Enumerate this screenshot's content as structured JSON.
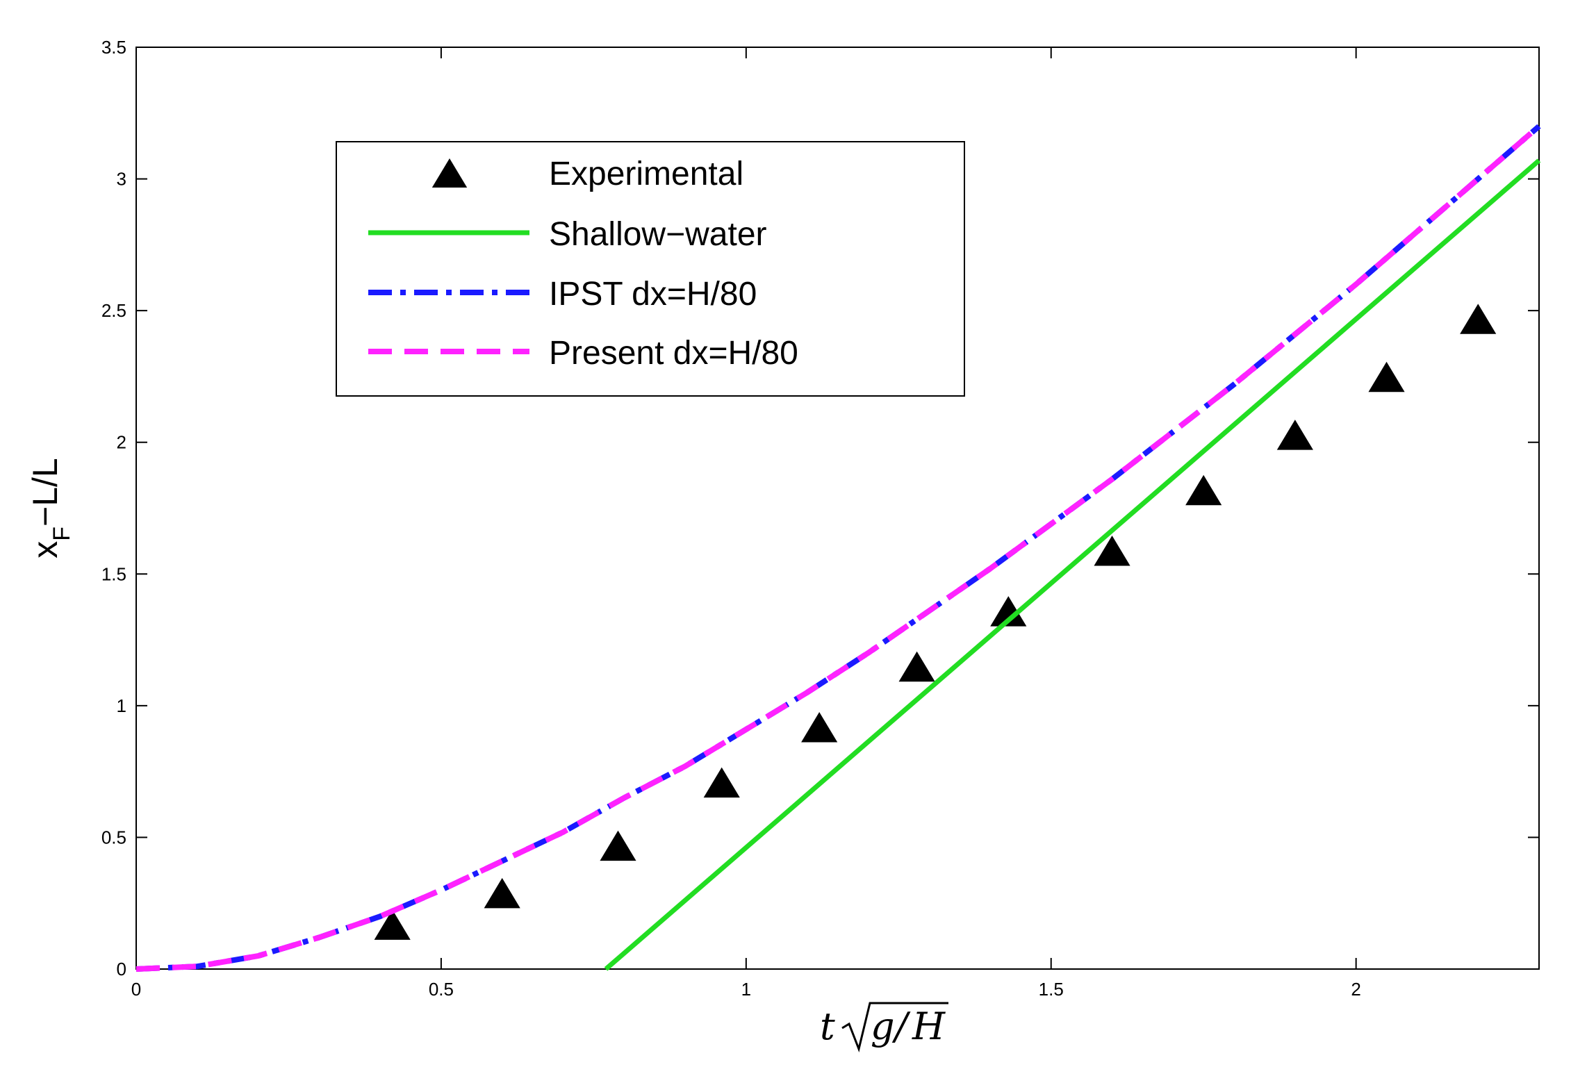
{
  "chart_data": {
    "type": "line",
    "title": "",
    "xlabel": "t√(g/H)",
    "xlabel_parts": {
      "t": "t",
      "g": "g",
      "slash": "/",
      "H": "H"
    },
    "ylabel": "x_F−L/L",
    "ylabel_parts": {
      "x": "x",
      "sub": "F",
      "rest": "−L/L"
    },
    "xlim": [
      0,
      2.3
    ],
    "ylim": [
      0,
      3.5
    ],
    "grid": false,
    "legend_position": "upper-left",
    "xticks": [
      0,
      0.5,
      1,
      1.5,
      2
    ],
    "xtick_labels": [
      "0",
      "0.5",
      "1",
      "1.5",
      "2"
    ],
    "yticks": [
      0,
      0.5,
      1,
      1.5,
      2,
      2.5,
      3,
      3.5
    ],
    "ytick_labels": [
      "0",
      "0.5",
      "1",
      "1.5",
      "2",
      "2.5",
      "3",
      "3.5"
    ],
    "series": [
      {
        "name": "Experimental",
        "style": "markers-triangle",
        "color": "#000000",
        "x": [
          0.42,
          0.6,
          0.79,
          0.96,
          1.12,
          1.28,
          1.43,
          1.6,
          1.75,
          1.9,
          2.05,
          2.2
        ],
        "y": [
          0.16,
          0.28,
          0.46,
          0.7,
          0.91,
          1.14,
          1.35,
          1.58,
          1.81,
          2.02,
          2.24,
          2.46
        ]
      },
      {
        "name": "Shallow−water",
        "style": "solid",
        "color": "#22dd22",
        "x": [
          0.77,
          2.3
        ],
        "y": [
          0.0,
          3.07
        ]
      },
      {
        "name": "IPST dx=H/80",
        "style": "dash-dot",
        "color": "#1a1aff",
        "x": [
          0,
          0.1,
          0.2,
          0.3,
          0.4,
          0.5,
          0.6,
          0.7,
          0.8,
          0.9,
          1.0,
          1.1,
          1.2,
          1.3,
          1.4,
          1.5,
          1.6,
          1.7,
          1.8,
          1.9,
          2.0,
          2.1,
          2.2,
          2.3
        ],
        "y": [
          0,
          0.01,
          0.05,
          0.12,
          0.2,
          0.3,
          0.41,
          0.52,
          0.65,
          0.77,
          0.91,
          1.05,
          1.2,
          1.36,
          1.52,
          1.69,
          1.86,
          2.04,
          2.22,
          2.41,
          2.6,
          2.8,
          3.0,
          3.2
        ]
      },
      {
        "name": "Present dx=H/80",
        "style": "dashed",
        "color": "#ff22ff",
        "x": [
          0,
          0.1,
          0.2,
          0.3,
          0.4,
          0.5,
          0.6,
          0.7,
          0.8,
          0.9,
          1.0,
          1.1,
          1.2,
          1.3,
          1.4,
          1.5,
          1.6,
          1.7,
          1.8,
          1.9,
          2.0,
          2.1,
          2.2,
          2.3
        ],
        "y": [
          0,
          0.01,
          0.05,
          0.12,
          0.2,
          0.3,
          0.41,
          0.52,
          0.65,
          0.77,
          0.91,
          1.05,
          1.2,
          1.36,
          1.52,
          1.69,
          1.86,
          2.04,
          2.22,
          2.41,
          2.6,
          2.8,
          3.0,
          3.2
        ]
      }
    ]
  }
}
